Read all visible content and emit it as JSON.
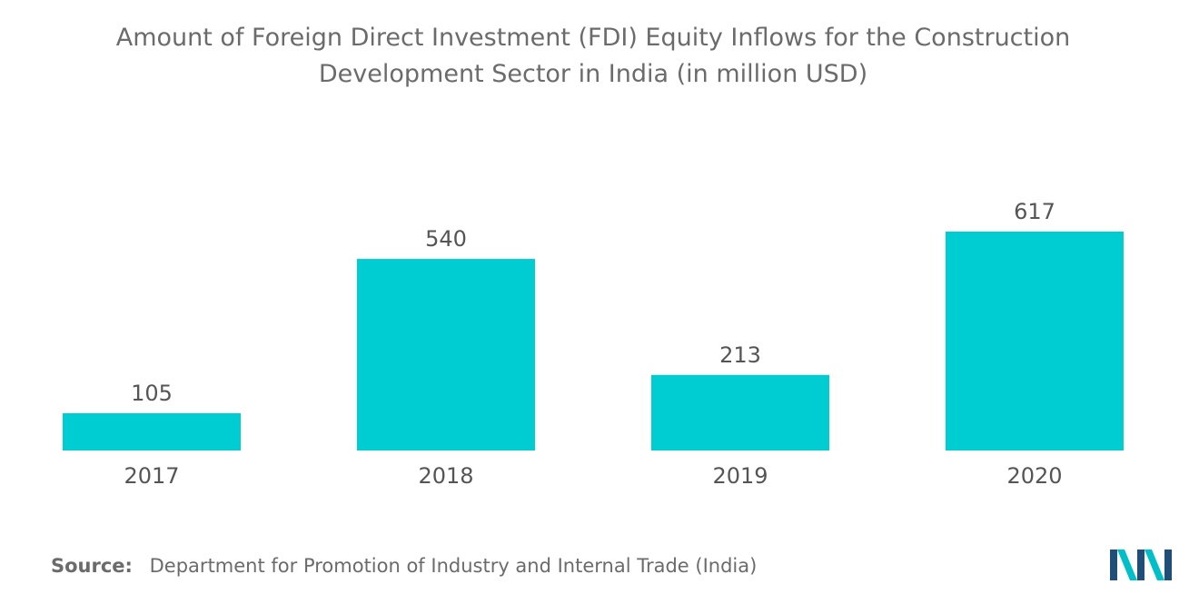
{
  "chart_data": {
    "type": "bar",
    "title_lines": [
      "Amount of Foreign Direct Investment (FDI) Equity Inflows for the Construction",
      "Development Sector in India (in million USD)"
    ],
    "categories": [
      "2017",
      "2018",
      "2019",
      "2020"
    ],
    "values": [
      105,
      540,
      213,
      617
    ],
    "value_labels": [
      "105",
      "540",
      "213",
      "617"
    ],
    "xlabel": "",
    "ylabel": "",
    "ylim": [
      0,
      617
    ],
    "grid": false,
    "legend": "none",
    "bar_color": "#00cdd1"
  },
  "source": {
    "label": "Source:",
    "text": "Department for Promotion of Industry and Internal Trade (India)"
  },
  "colors": {
    "logo_dark": "#1f4e79",
    "logo_light": "#00bfc8"
  }
}
